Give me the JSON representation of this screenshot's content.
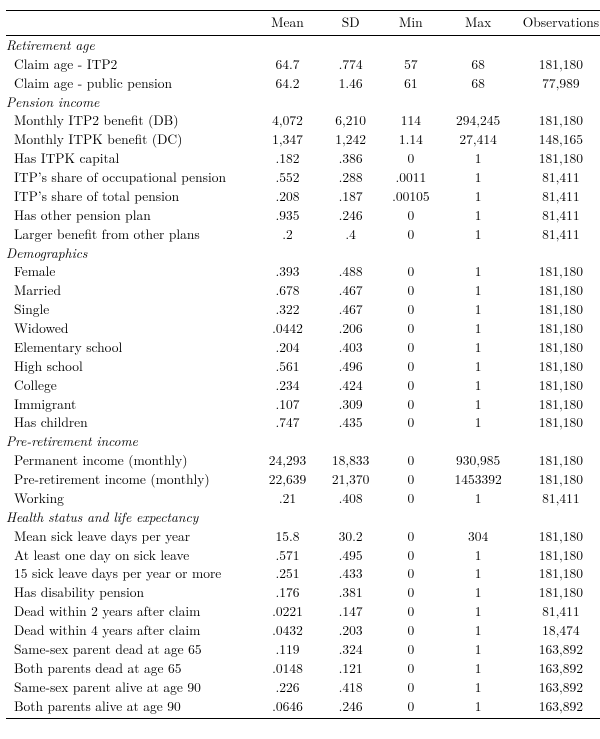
{
  "columns": [
    "",
    "Mean",
    "SD",
    "Min",
    "Max",
    "Observations"
  ],
  "sections": [
    {
      "title": "Retirement age",
      "rows": [
        {
          "label": "Claim age - ITP2",
          "mean": "64.7",
          "sd": ".774",
          "min": "57",
          "max": "68",
          "obs": "181,180"
        },
        {
          "label": "Claim age - public pension",
          "mean": "64.2",
          "sd": "1.46",
          "min": "61",
          "max": "68",
          "obs": "77,989"
        }
      ]
    },
    {
      "title": "Pension income",
      "rows": [
        {
          "label": "Monthly ITP2 benefit (DB)",
          "mean": "4,072",
          "sd": "6,210",
          "min": "114",
          "max": "294,245",
          "obs": "181,180"
        },
        {
          "label": "Monthly ITPK benefit (DC)",
          "mean": "1,347",
          "sd": "1,242",
          "min": "1.14",
          "max": "27,414",
          "obs": "148,165"
        },
        {
          "label": "Has ITPK capital",
          "mean": ".182",
          "sd": ".386",
          "min": "0",
          "max": "1",
          "obs": "181,180"
        },
        {
          "label": "ITP’s share of occupational pension",
          "mean": ".552",
          "sd": ".288",
          "min": ".0011",
          "max": "1",
          "obs": "81,411"
        },
        {
          "label": "ITP’s share of total pension",
          "mean": ".208",
          "sd": ".187",
          "min": ".00105",
          "max": "1",
          "obs": "81,411"
        },
        {
          "label": "Has other pension plan",
          "mean": ".935",
          "sd": ".246",
          "min": "0",
          "max": "1",
          "obs": "81,411"
        },
        {
          "label": "Larger benefit from other plans",
          "mean": ".2",
          "sd": ".4",
          "min": "0",
          "max": "1",
          "obs": "81,411"
        }
      ]
    },
    {
      "title": "Demographics",
      "rows": [
        {
          "label": "Female",
          "mean": ".393",
          "sd": ".488",
          "min": "0",
          "max": "1",
          "obs": "181,180"
        },
        {
          "label": "Married",
          "mean": ".678",
          "sd": ".467",
          "min": "0",
          "max": "1",
          "obs": "181,180"
        },
        {
          "label": "Single",
          "mean": ".322",
          "sd": ".467",
          "min": "0",
          "max": "1",
          "obs": "181,180"
        },
        {
          "label": "Widowed",
          "mean": ".0442",
          "sd": ".206",
          "min": "0",
          "max": "1",
          "obs": "181,180"
        },
        {
          "label": "Elementary school",
          "mean": ".204",
          "sd": ".403",
          "min": "0",
          "max": "1",
          "obs": "181,180"
        },
        {
          "label": "High school",
          "mean": ".561",
          "sd": ".496",
          "min": "0",
          "max": "1",
          "obs": "181,180"
        },
        {
          "label": "College",
          "mean": ".234",
          "sd": ".424",
          "min": "0",
          "max": "1",
          "obs": "181,180"
        },
        {
          "label": "Immigrant",
          "mean": ".107",
          "sd": ".309",
          "min": "0",
          "max": "1",
          "obs": "181,180"
        },
        {
          "label": "Has children",
          "mean": ".747",
          "sd": ".435",
          "min": "0",
          "max": "1",
          "obs": "181,180"
        }
      ]
    },
    {
      "title": "Pre-retirement income",
      "rows": [
        {
          "label": "Permanent income (monthly)",
          "mean": "24,293",
          "sd": "18,833",
          "min": "0",
          "max": "930,985",
          "obs": "181,180"
        },
        {
          "label": "Pre-retirement income (monthly)",
          "mean": "22,639",
          "sd": "21,370",
          "min": "0",
          "max": "1453392",
          "obs": "181,180"
        },
        {
          "label": "Working",
          "mean": ".21",
          "sd": ".408",
          "min": "0",
          "max": "1",
          "obs": "81,411"
        }
      ]
    },
    {
      "title": "Health status and life expectancy",
      "rows": [
        {
          "label": "Mean sick leave days per year",
          "mean": "15.8",
          "sd": "30.2",
          "min": "0",
          "max": "304",
          "obs": "181,180"
        },
        {
          "label": "At least one day on sick leave",
          "mean": ".571",
          "sd": ".495",
          "min": "0",
          "max": "1",
          "obs": "181,180"
        },
        {
          "label": "15 sick leave days per year or more",
          "mean": ".251",
          "sd": ".433",
          "min": "0",
          "max": "1",
          "obs": "181,180"
        },
        {
          "label": "Has disability pension",
          "mean": ".176",
          "sd": ".381",
          "min": "0",
          "max": "1",
          "obs": "181,180"
        },
        {
          "label": "Dead within 2 years after claim",
          "mean": ".0221",
          "sd": ".147",
          "min": "0",
          "max": "1",
          "obs": "81,411"
        },
        {
          "label": "Dead within 4 years after claim",
          "mean": ".0432",
          "sd": ".203",
          "min": "0",
          "max": "1",
          "obs": "18,474"
        },
        {
          "label": "Same-sex parent dead at age 65",
          "mean": ".119",
          "sd": ".324",
          "min": "0",
          "max": "1",
          "obs": "163,892"
        },
        {
          "label": "Both parents dead at age 65",
          "mean": ".0148",
          "sd": ".121",
          "min": "0",
          "max": "1",
          "obs": "163,892"
        },
        {
          "label": "Same-sex parent alive at age 90",
          "mean": ".226",
          "sd": ".418",
          "min": "0",
          "max": "1",
          "obs": "163,892"
        },
        {
          "label": "Both parents alive at age 90",
          "mean": ".0646",
          "sd": ".246",
          "min": "0",
          "max": "1",
          "obs": "163,892"
        }
      ]
    }
  ]
}
